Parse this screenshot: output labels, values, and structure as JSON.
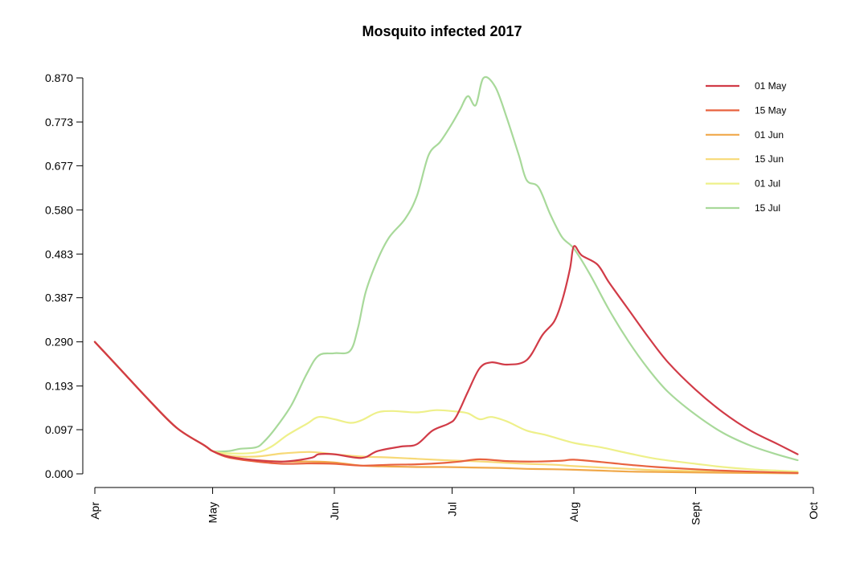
{
  "chart_data": {
    "type": "line",
    "title": "Mosquito infected 2017",
    "xlabel": "",
    "ylabel": "",
    "x_ticks": [
      "Apr",
      "May",
      "Jun",
      "Jul",
      "Aug",
      "Sept",
      "Oct"
    ],
    "y_ticks": [
      "0.000",
      "0.097",
      "0.193",
      "0.290",
      "0.387",
      "0.483",
      "0.580",
      "0.677",
      "0.773",
      "0.870"
    ],
    "ylim": [
      0,
      0.87
    ],
    "xlim": [
      "2017-04-01",
      "2017-10-01"
    ],
    "legend_position": "top-right",
    "grid": false,
    "series": [
      {
        "name": "01 May",
        "color": "#d13b47",
        "points": [
          [
            "2017-04-01",
            0.29
          ],
          [
            "2017-04-08",
            0.225
          ],
          [
            "2017-04-15",
            0.16
          ],
          [
            "2017-04-22",
            0.1
          ],
          [
            "2017-04-29",
            0.062
          ],
          [
            "2017-05-01",
            0.05
          ],
          [
            "2017-05-05",
            0.038
          ],
          [
            "2017-05-12",
            0.03
          ],
          [
            "2017-05-19",
            0.027
          ],
          [
            "2017-05-26",
            0.035
          ],
          [
            "2017-05-28",
            0.043
          ],
          [
            "2017-06-01",
            0.043
          ],
          [
            "2017-06-08",
            0.035
          ],
          [
            "2017-06-12",
            0.05
          ],
          [
            "2017-06-18",
            0.06
          ],
          [
            "2017-06-22",
            0.065
          ],
          [
            "2017-06-26",
            0.095
          ],
          [
            "2017-06-30",
            0.11
          ],
          [
            "2017-07-02",
            0.125
          ],
          [
            "2017-07-05",
            0.18
          ],
          [
            "2017-07-08",
            0.232
          ],
          [
            "2017-07-11",
            0.245
          ],
          [
            "2017-07-15",
            0.24
          ],
          [
            "2017-07-20",
            0.25
          ],
          [
            "2017-07-24",
            0.305
          ],
          [
            "2017-07-27",
            0.335
          ],
          [
            "2017-07-29",
            0.38
          ],
          [
            "2017-07-31",
            0.45
          ],
          [
            "2017-08-01",
            0.5
          ],
          [
            "2017-08-03",
            0.48
          ],
          [
            "2017-08-07",
            0.46
          ],
          [
            "2017-08-10",
            0.42
          ],
          [
            "2017-08-15",
            0.36
          ],
          [
            "2017-08-20",
            0.3
          ],
          [
            "2017-08-25",
            0.245
          ],
          [
            "2017-09-01",
            0.185
          ],
          [
            "2017-09-08",
            0.135
          ],
          [
            "2017-09-15",
            0.095
          ],
          [
            "2017-09-22",
            0.065
          ],
          [
            "2017-09-27",
            0.043
          ]
        ]
      },
      {
        "name": "15 May",
        "color": "#e8623f",
        "points": [
          [
            "2017-04-01",
            0.29
          ],
          [
            "2017-04-08",
            0.225
          ],
          [
            "2017-04-15",
            0.16
          ],
          [
            "2017-04-22",
            0.1
          ],
          [
            "2017-04-29",
            0.062
          ],
          [
            "2017-05-01",
            0.05
          ],
          [
            "2017-05-05",
            0.036
          ],
          [
            "2017-05-12",
            0.027
          ],
          [
            "2017-05-19",
            0.022
          ],
          [
            "2017-05-26",
            0.023
          ],
          [
            "2017-06-01",
            0.022
          ],
          [
            "2017-06-08",
            0.018
          ],
          [
            "2017-06-15",
            0.02
          ],
          [
            "2017-06-22",
            0.021
          ],
          [
            "2017-06-29",
            0.024
          ],
          [
            "2017-07-03",
            0.027
          ],
          [
            "2017-07-08",
            0.032
          ],
          [
            "2017-07-15",
            0.028
          ],
          [
            "2017-07-22",
            0.027
          ],
          [
            "2017-07-29",
            0.029
          ],
          [
            "2017-08-01",
            0.031
          ],
          [
            "2017-08-08",
            0.026
          ],
          [
            "2017-08-15",
            0.02
          ],
          [
            "2017-08-22",
            0.015
          ],
          [
            "2017-09-01",
            0.01
          ],
          [
            "2017-09-08",
            0.007
          ],
          [
            "2017-09-15",
            0.005
          ],
          [
            "2017-09-22",
            0.003
          ],
          [
            "2017-09-27",
            0.002
          ]
        ]
      },
      {
        "name": "01 Jun",
        "color": "#f0a84a",
        "points": [
          [
            "2017-04-01",
            0.29
          ],
          [
            "2017-04-08",
            0.225
          ],
          [
            "2017-04-15",
            0.16
          ],
          [
            "2017-04-22",
            0.1
          ],
          [
            "2017-04-29",
            0.062
          ],
          [
            "2017-05-01",
            0.05
          ],
          [
            "2017-05-05",
            0.037
          ],
          [
            "2017-05-12",
            0.03
          ],
          [
            "2017-05-19",
            0.027
          ],
          [
            "2017-05-26",
            0.027
          ],
          [
            "2017-06-01",
            0.025
          ],
          [
            "2017-06-08",
            0.018
          ],
          [
            "2017-06-15",
            0.016
          ],
          [
            "2017-06-22",
            0.015
          ],
          [
            "2017-06-29",
            0.015
          ],
          [
            "2017-07-06",
            0.014
          ],
          [
            "2017-07-13",
            0.013
          ],
          [
            "2017-07-20",
            0.011
          ],
          [
            "2017-07-27",
            0.01
          ],
          [
            "2017-08-01",
            0.009
          ],
          [
            "2017-08-08",
            0.007
          ],
          [
            "2017-08-15",
            0.005
          ],
          [
            "2017-08-22",
            0.004
          ],
          [
            "2017-09-01",
            0.003
          ],
          [
            "2017-09-15",
            0.002
          ],
          [
            "2017-09-27",
            0.001
          ]
        ]
      },
      {
        "name": "15 Jun",
        "color": "#f7d977",
        "points": [
          [
            "2017-04-01",
            0.29
          ],
          [
            "2017-04-08",
            0.225
          ],
          [
            "2017-04-15",
            0.16
          ],
          [
            "2017-04-22",
            0.1
          ],
          [
            "2017-04-29",
            0.062
          ],
          [
            "2017-05-01",
            0.05
          ],
          [
            "2017-05-05",
            0.04
          ],
          [
            "2017-05-12",
            0.038
          ],
          [
            "2017-05-19",
            0.045
          ],
          [
            "2017-05-26",
            0.048
          ],
          [
            "2017-06-01",
            0.043
          ],
          [
            "2017-06-08",
            0.038
          ],
          [
            "2017-06-15",
            0.036
          ],
          [
            "2017-06-22",
            0.033
          ],
          [
            "2017-06-29",
            0.03
          ],
          [
            "2017-07-06",
            0.028
          ],
          [
            "2017-07-13",
            0.025
          ],
          [
            "2017-07-20",
            0.022
          ],
          [
            "2017-07-27",
            0.02
          ],
          [
            "2017-08-01",
            0.017
          ],
          [
            "2017-08-08",
            0.014
          ],
          [
            "2017-08-15",
            0.011
          ],
          [
            "2017-08-22",
            0.008
          ],
          [
            "2017-09-01",
            0.006
          ],
          [
            "2017-09-15",
            0.004
          ],
          [
            "2017-09-27",
            0.002
          ]
        ]
      },
      {
        "name": "01 Jul",
        "color": "#eef08a",
        "points": [
          [
            "2017-04-01",
            0.29
          ],
          [
            "2017-04-08",
            0.225
          ],
          [
            "2017-04-15",
            0.16
          ],
          [
            "2017-04-22",
            0.1
          ],
          [
            "2017-04-29",
            0.062
          ],
          [
            "2017-05-01",
            0.05
          ],
          [
            "2017-05-05",
            0.045
          ],
          [
            "2017-05-12",
            0.047
          ],
          [
            "2017-05-16",
            0.06
          ],
          [
            "2017-05-20",
            0.085
          ],
          [
            "2017-05-25",
            0.11
          ],
          [
            "2017-05-28",
            0.125
          ],
          [
            "2017-06-01",
            0.12
          ],
          [
            "2017-06-05",
            0.112
          ],
          [
            "2017-06-08",
            0.118
          ],
          [
            "2017-06-12",
            0.135
          ],
          [
            "2017-06-16",
            0.138
          ],
          [
            "2017-06-22",
            0.135
          ],
          [
            "2017-06-27",
            0.14
          ],
          [
            "2017-07-02",
            0.137
          ],
          [
            "2017-07-05",
            0.133
          ],
          [
            "2017-07-08",
            0.12
          ],
          [
            "2017-07-11",
            0.125
          ],
          [
            "2017-07-15",
            0.115
          ],
          [
            "2017-07-20",
            0.095
          ],
          [
            "2017-07-25",
            0.085
          ],
          [
            "2017-08-01",
            0.068
          ],
          [
            "2017-08-08",
            0.058
          ],
          [
            "2017-08-15",
            0.045
          ],
          [
            "2017-08-22",
            0.033
          ],
          [
            "2017-09-01",
            0.022
          ],
          [
            "2017-09-08",
            0.015
          ],
          [
            "2017-09-15",
            0.01
          ],
          [
            "2017-09-22",
            0.007
          ],
          [
            "2017-09-27",
            0.005
          ]
        ]
      },
      {
        "name": "15 Jul",
        "color": "#a8d99a",
        "points": [
          [
            "2017-04-01",
            0.29
          ],
          [
            "2017-04-08",
            0.225
          ],
          [
            "2017-04-15",
            0.16
          ],
          [
            "2017-04-22",
            0.1
          ],
          [
            "2017-04-29",
            0.062
          ],
          [
            "2017-05-01",
            0.05
          ],
          [
            "2017-05-05",
            0.05
          ],
          [
            "2017-05-08",
            0.055
          ],
          [
            "2017-05-12",
            0.058
          ],
          [
            "2017-05-14",
            0.07
          ],
          [
            "2017-05-17",
            0.1
          ],
          [
            "2017-05-21",
            0.15
          ],
          [
            "2017-05-25",
            0.22
          ],
          [
            "2017-05-28",
            0.26
          ],
          [
            "2017-06-01",
            0.265
          ],
          [
            "2017-06-05",
            0.27
          ],
          [
            "2017-06-07",
            0.32
          ],
          [
            "2017-06-09",
            0.4
          ],
          [
            "2017-06-12",
            0.47
          ],
          [
            "2017-06-15",
            0.52
          ],
          [
            "2017-06-19",
            0.56
          ],
          [
            "2017-06-22",
            0.61
          ],
          [
            "2017-06-25",
            0.7
          ],
          [
            "2017-06-28",
            0.73
          ],
          [
            "2017-07-01",
            0.77
          ],
          [
            "2017-07-03",
            0.8
          ],
          [
            "2017-07-05",
            0.83
          ],
          [
            "2017-07-07",
            0.81
          ],
          [
            "2017-07-09",
            0.87
          ],
          [
            "2017-07-12",
            0.85
          ],
          [
            "2017-07-15",
            0.78
          ],
          [
            "2017-07-18",
            0.7
          ],
          [
            "2017-07-20",
            0.645
          ],
          [
            "2017-07-23",
            0.63
          ],
          [
            "2017-07-26",
            0.57
          ],
          [
            "2017-07-29",
            0.52
          ],
          [
            "2017-08-01",
            0.495
          ],
          [
            "2017-08-05",
            0.44
          ],
          [
            "2017-08-10",
            0.36
          ],
          [
            "2017-08-15",
            0.29
          ],
          [
            "2017-08-20",
            0.23
          ],
          [
            "2017-08-25",
            0.18
          ],
          [
            "2017-09-01",
            0.13
          ],
          [
            "2017-09-08",
            0.09
          ],
          [
            "2017-09-15",
            0.062
          ],
          [
            "2017-09-22",
            0.042
          ],
          [
            "2017-09-27",
            0.03
          ]
        ]
      }
    ]
  }
}
